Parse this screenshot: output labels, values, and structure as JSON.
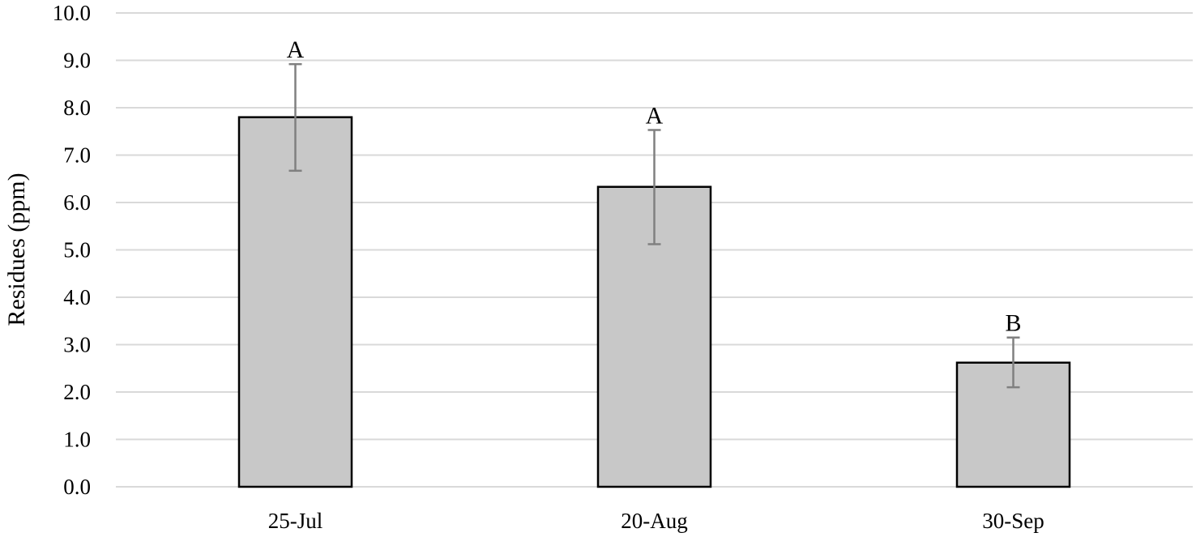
{
  "chart_data": {
    "type": "bar",
    "categories": [
      "25-Jul",
      "20-Aug",
      "30-Sep"
    ],
    "values": [
      7.8,
      6.33,
      2.62
    ],
    "error_low": [
      6.67,
      5.12,
      2.1
    ],
    "error_high": [
      8.92,
      7.53,
      3.15
    ],
    "significance_labels": [
      "A",
      "A",
      "B"
    ],
    "ylabel": "Residues (ppm)",
    "xlabel": "",
    "ylim": [
      0,
      10
    ],
    "yticks": [
      "0.0",
      "1.0",
      "2.0",
      "3.0",
      "4.0",
      "5.0",
      "6.0",
      "7.0",
      "8.0",
      "9.0",
      "10.0"
    ],
    "ytick_values": [
      0,
      1,
      2,
      3,
      4,
      5,
      6,
      7,
      8,
      9,
      10
    ],
    "grid": true,
    "legend": "none",
    "colors": {
      "bar_fill": "#c8c8c8",
      "bar_stroke": "#000000",
      "error_bar": "#808080",
      "gridline": "#d9d9d9"
    }
  }
}
